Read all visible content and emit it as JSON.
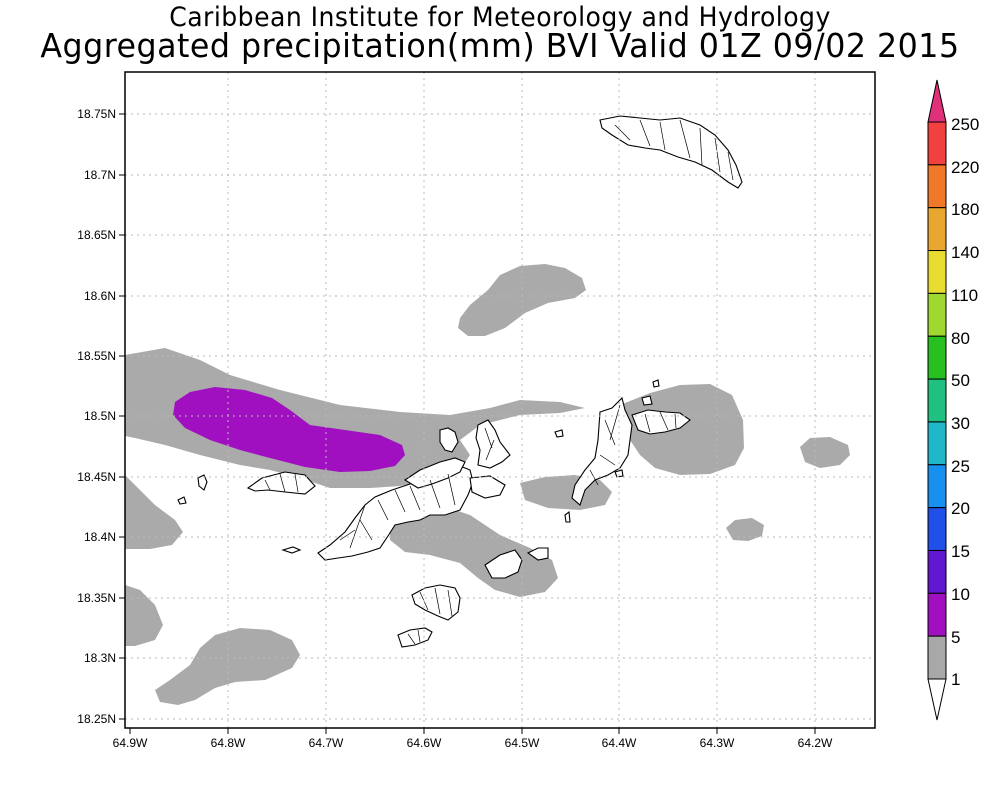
{
  "title": {
    "line1": "Caribbean Institute for Meteorology and Hydrology",
    "line2": "Aggregated precipitation(mm) BVI Valid 01Z 09/02 2015"
  },
  "axes": {
    "lat_ticks": [
      "18.75N",
      "18.7N",
      "18.65N",
      "18.6N",
      "18.55N",
      "18.5N",
      "18.45N",
      "18.4N",
      "18.35N",
      "18.3N",
      "18.25N"
    ],
    "lon_ticks": [
      "64.9W",
      "64.8W",
      "64.7W",
      "64.6W",
      "64.5W",
      "64.4W",
      "64.3W",
      "64.2W"
    ]
  },
  "legend": {
    "labels": [
      "250",
      "220",
      "180",
      "140",
      "110",
      "80",
      "50",
      "30",
      "25",
      "20",
      "15",
      "10",
      "5",
      "1"
    ],
    "colors": {
      "250": "#e0307a",
      "220": "#f04040",
      "180": "#f07828",
      "140": "#e8a830",
      "110": "#e8dc30",
      "80": "#a0d830",
      "50": "#28c020",
      "30": "#20c080",
      "25": "#20b8c8",
      "20": "#1890f0",
      "15": "#2050e8",
      "10": "#6018d0",
      "5": "#a010c0",
      "1": "#a8a8a8"
    }
  },
  "colors": {
    "rain_1mm": "#aaaaaa",
    "rain_5mm": "#a010c0",
    "land": "#ffffff",
    "frame": "#000000",
    "grid": "#bbbbbb"
  }
}
